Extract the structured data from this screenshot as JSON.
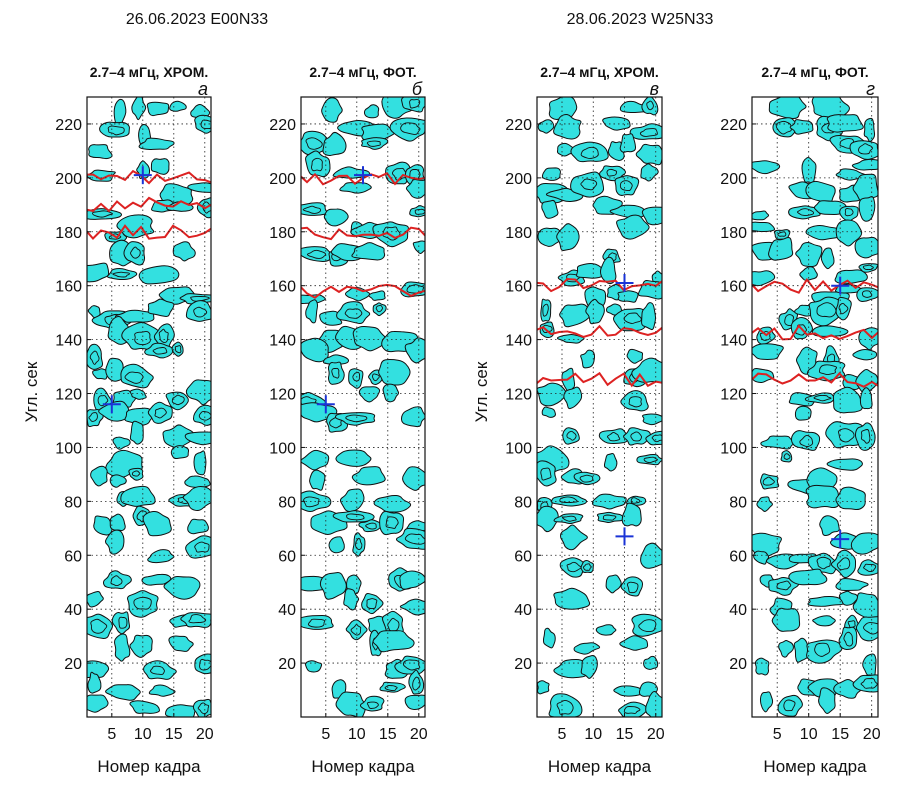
{
  "figure": {
    "dates": [
      {
        "text": "26.06.2023  E00N33"
      },
      {
        "text": "28.06.2023  W25N33"
      }
    ],
    "ylabel": "Угл. сек",
    "xlabel": "Номер кадра"
  },
  "colors": {
    "fill": "#33e0e0",
    "contour": "#111111",
    "red": "#dd2222",
    "marker": "#1a33d6",
    "grid": "#222222"
  },
  "chart_data": [
    {
      "type": "heatmap",
      "title": "2.7–4 мГц, ХРОМ.",
      "panel_letter": "а",
      "xlim": [
        1,
        21
      ],
      "ylim": [
        0,
        230
      ],
      "xticks": [
        5,
        10,
        15,
        20
      ],
      "yticks": [
        20,
        40,
        60,
        80,
        100,
        120,
        140,
        160,
        180,
        200,
        220
      ],
      "markers": [
        {
          "x": 10,
          "y": 201
        },
        {
          "x": 5,
          "y": 116
        }
      ],
      "red_band": [
        180,
        200
      ]
    },
    {
      "type": "heatmap",
      "title": "2.7–4 мГц, ФОТ.",
      "panel_letter": "б",
      "xlim": [
        1,
        21
      ],
      "ylim": [
        0,
        230
      ],
      "xticks": [
        5,
        10,
        15,
        20
      ],
      "yticks": [
        20,
        40,
        60,
        80,
        100,
        120,
        140,
        160,
        180,
        200,
        220
      ],
      "markers": [
        {
          "x": 11,
          "y": 201
        },
        {
          "x": 5,
          "y": 116
        }
      ],
      "red_band": [
        158,
        200
      ]
    },
    {
      "type": "heatmap",
      "title": "2.7–4 мГц, ХРОМ.",
      "panel_letter": "в",
      "xlim": [
        1,
        21
      ],
      "ylim": [
        0,
        230
      ],
      "xticks": [
        5,
        10,
        15,
        20
      ],
      "yticks": [
        20,
        40,
        60,
        80,
        100,
        120,
        140,
        160,
        180,
        200,
        220
      ],
      "markers": [
        {
          "x": 15,
          "y": 161
        },
        {
          "x": 15,
          "y": 67
        }
      ],
      "red_band": [
        125,
        160
      ]
    },
    {
      "type": "heatmap",
      "title": "2.7–4 мГц, ФОТ.",
      "panel_letter": "г",
      "xlim": [
        1,
        21
      ],
      "ylim": [
        0,
        230
      ],
      "xticks": [
        5,
        10,
        15,
        20
      ],
      "yticks": [
        20,
        40,
        60,
        80,
        100,
        120,
        140,
        160,
        180,
        200,
        220
      ],
      "markers": [
        {
          "x": 15,
          "y": 160
        },
        {
          "x": 15,
          "y": 66
        }
      ],
      "red_band": [
        125,
        160
      ]
    }
  ]
}
